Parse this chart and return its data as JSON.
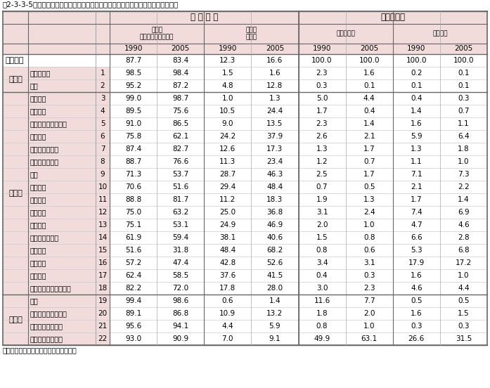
{
  "title": "第2-3-3-5表　我が国の「波及効果」の内訳と産業部門別構成比（産業連関表、％）",
  "footnote": "資料：総務省「産業連関表」から作成。",
  "header_bg": "#F2DCDB",
  "border_color": "#888888",
  "outer_border_color": "#666666",
  "col_headers_l1": [
    "波 及 効 果",
    "構　成　比"
  ],
  "col_headers_l2_left": [
    "内　需",
    "国産最終財国内消費"
  ],
  "col_headers_l2_right_a": [
    "外　需",
    "輸　出"
  ],
  "col_headers_l2_c": "国内生産額",
  "col_headers_l2_d_top": "輸　　入",
  "col_headers_l3": [
    "1990",
    "2005",
    "1990",
    "2005",
    "1990",
    "2005",
    "1990",
    "2005"
  ],
  "industry_overall_label": "産業全体",
  "industry_overall_values": [
    87.7,
    83.4,
    12.3,
    16.6,
    100.0,
    100.0,
    100.0,
    100.0
  ],
  "categories": [
    {
      "name": "第一次",
      "rows": [
        {
          "name": "農林水産業",
          "num": "1",
          "values": [
            98.5,
            98.4,
            1.5,
            1.6,
            2.3,
            1.6,
            0.2,
            0.1
          ]
        },
        {
          "name": "鉱業",
          "num": "2",
          "values": [
            95.2,
            87.2,
            4.8,
            12.8,
            0.3,
            0.1,
            0.1,
            0.1
          ]
        }
      ]
    },
    {
      "name": "第二次",
      "rows": [
        {
          "name": "飲食料品",
          "num": "3",
          "values": [
            99.0,
            98.7,
            1.0,
            1.3,
            5.0,
            4.4,
            0.4,
            0.3
          ]
        },
        {
          "name": "繊維製品",
          "num": "4",
          "values": [
            89.5,
            75.6,
            10.5,
            24.4,
            1.7,
            0.4,
            1.4,
            0.7
          ]
        },
        {
          "name": "パルプ・紙・木製品",
          "num": "5",
          "values": [
            91.0,
            86.5,
            9.0,
            13.5,
            2.3,
            1.4,
            1.6,
            1.1
          ]
        },
        {
          "name": "化学製品",
          "num": "6",
          "values": [
            75.8,
            62.1,
            24.2,
            37.9,
            2.6,
            2.1,
            5.9,
            6.4
          ]
        },
        {
          "name": "石油・石炭製品",
          "num": "7",
          "values": [
            87.4,
            82.7,
            12.6,
            17.3,
            1.3,
            1.7,
            1.3,
            1.8
          ]
        },
        {
          "name": "窯業・土石製品",
          "num": "8",
          "values": [
            88.7,
            76.6,
            11.3,
            23.4,
            1.2,
            0.7,
            1.1,
            1.0
          ]
        },
        {
          "name": "鉄鋼",
          "num": "9",
          "values": [
            71.3,
            53.7,
            28.7,
            46.3,
            2.5,
            1.7,
            7.1,
            7.3
          ]
        },
        {
          "name": "非鉄金属",
          "num": "10",
          "values": [
            70.6,
            51.6,
            29.4,
            48.4,
            0.7,
            0.5,
            2.1,
            2.2
          ]
        },
        {
          "name": "金属製品",
          "num": "11",
          "values": [
            88.8,
            81.7,
            11.2,
            18.3,
            1.9,
            1.3,
            1.7,
            1.4
          ]
        },
        {
          "name": "一般機械",
          "num": "12",
          "values": [
            75.0,
            63.2,
            25.0,
            36.8,
            3.1,
            2.4,
            7.4,
            6.9
          ]
        },
        {
          "name": "電気機械",
          "num": "13",
          "values": [
            75.1,
            53.1,
            24.9,
            46.9,
            2.0,
            1.0,
            4.7,
            4.6
          ]
        },
        {
          "name": "情報・通信機器",
          "num": "14",
          "values": [
            61.9,
            59.4,
            38.1,
            40.6,
            1.5,
            0.8,
            6.6,
            2.8
          ]
        },
        {
          "name": "電子部品",
          "num": "15",
          "values": [
            51.6,
            31.8,
            48.4,
            68.2,
            0.8,
            0.6,
            5.3,
            6.8
          ]
        },
        {
          "name": "輸送機械",
          "num": "16",
          "values": [
            57.2,
            47.4,
            42.8,
            52.6,
            3.4,
            3.1,
            17.9,
            17.2
          ]
        },
        {
          "name": "精密機械",
          "num": "17",
          "values": [
            62.4,
            58.5,
            37.6,
            41.5,
            0.4,
            0.3,
            1.6,
            1.0
          ]
        },
        {
          "name": "その他の製造工業製品",
          "num": "18",
          "values": [
            82.2,
            72.0,
            17.8,
            28.0,
            3.0,
            2.3,
            4.6,
            4.4
          ]
        }
      ]
    },
    {
      "name": "第三次",
      "rows": [
        {
          "name": "建設",
          "num": "19",
          "values": [
            99.4,
            98.6,
            0.6,
            1.4,
            11.6,
            7.7,
            0.5,
            0.5
          ]
        },
        {
          "name": "電力・ガス・熱供給",
          "num": "20",
          "values": [
            89.1,
            86.8,
            10.9,
            13.2,
            1.8,
            2.0,
            1.6,
            1.5
          ]
        },
        {
          "name": "水道・廃棄物処理",
          "num": "21",
          "values": [
            95.6,
            94.1,
            4.4,
            5.9,
            0.8,
            1.0,
            0.3,
            0.3
          ]
        },
        {
          "name": "サービス、その他",
          "num": "22",
          "values": [
            93.0,
            90.9,
            7.0,
            9.1,
            49.9,
            63.1,
            26.6,
            31.5
          ]
        }
      ]
    }
  ]
}
